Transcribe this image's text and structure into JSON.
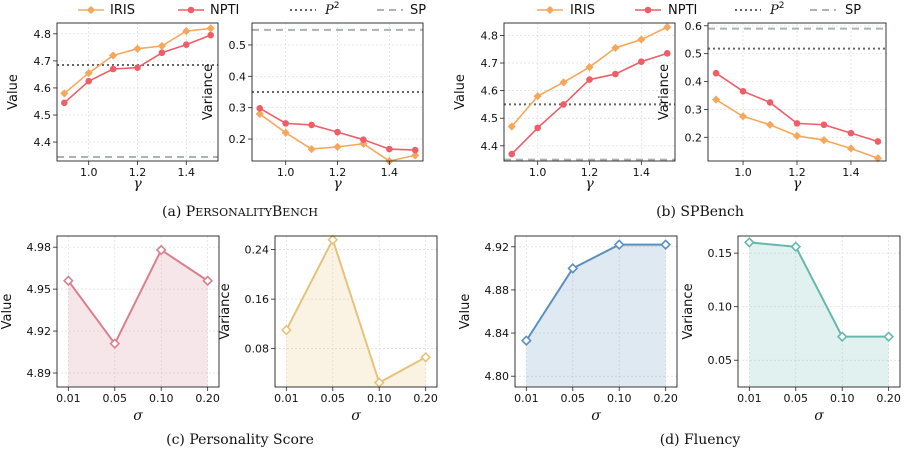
{
  "top_legends": [
    {
      "items": [
        {
          "label": "IRIS",
          "style": "iris"
        },
        {
          "label": "NPTI",
          "style": "npti"
        },
        {
          "label": "P",
          "sup": "2",
          "style": "p2"
        },
        {
          "label": "SP",
          "style": "sp"
        }
      ]
    },
    {
      "items": [
        {
          "label": "IRIS",
          "style": "iris"
        },
        {
          "label": "NPTI",
          "style": "npti"
        },
        {
          "label": "P",
          "sup": "2",
          "style": "p2"
        },
        {
          "label": "SP",
          "style": "sp"
        }
      ]
    }
  ],
  "captions": [
    {
      "prefix": "(a) ",
      "big": [
        "P",
        "B"
      ],
      "text": "(a) PersonalityBench",
      "smallcaps": true
    },
    {
      "text": "(b) SPBench"
    },
    {
      "text": "(c) Personality Score"
    },
    {
      "text": "(d) Fluency"
    }
  ],
  "colors": {
    "iris": "#f5a85a",
    "npti": "#ee5e67",
    "p2": "#666666",
    "sp": "#a9b5b5",
    "pink": "#d9808f",
    "yellow": "#e8c27a",
    "blue": "#5b8fc0",
    "teal": "#66b8ad"
  },
  "chart_data": [
    {
      "id": "a-value",
      "type": "line",
      "xlabel": "γ",
      "ylabel": "Value",
      "xlim": [
        0.87,
        1.53
      ],
      "ylim": [
        4.33,
        4.84
      ],
      "xticks": [
        1.0,
        1.2,
        1.4
      ],
      "xtick_labels": [
        "1.0",
        "1.2",
        "1.4"
      ],
      "yticks": [
        4.4,
        4.5,
        4.6,
        4.7,
        4.8
      ],
      "ytick_labels": [
        "4.4",
        "4.5",
        "4.6",
        "4.7",
        "4.8"
      ],
      "x": [
        0.9,
        1.0,
        1.1,
        1.2,
        1.3,
        1.4,
        1.5
      ],
      "series": [
        {
          "name": "IRIS",
          "style": "iris",
          "values": [
            4.58,
            4.655,
            4.72,
            4.745,
            4.755,
            4.81,
            4.82
          ]
        },
        {
          "name": "NPTI",
          "style": "npti",
          "values": [
            4.545,
            4.625,
            4.67,
            4.675,
            4.73,
            4.76,
            4.795
          ]
        }
      ],
      "hlines": [
        {
          "name": "P2",
          "style": "p2",
          "y": 4.685
        },
        {
          "name": "SP",
          "style": "sp",
          "y": 4.345
        }
      ],
      "grid": true
    },
    {
      "id": "a-variance",
      "type": "line",
      "xlabel": "γ",
      "ylabel": "Variance",
      "xlim": [
        0.87,
        1.53
      ],
      "ylim": [
        0.13,
        0.57
      ],
      "xticks": [
        1.0,
        1.2,
        1.4
      ],
      "xtick_labels": [
        "1.0",
        "1.2",
        "1.4"
      ],
      "yticks": [
        0.2,
        0.3,
        0.4,
        0.5
      ],
      "ytick_labels": [
        "0.2",
        "0.3",
        "0.4",
        "0.5"
      ],
      "x": [
        0.9,
        1.0,
        1.1,
        1.2,
        1.3,
        1.4,
        1.5
      ],
      "series": [
        {
          "name": "IRIS",
          "style": "iris",
          "values": [
            0.28,
            0.22,
            0.168,
            0.175,
            0.185,
            0.13,
            0.148
          ]
        },
        {
          "name": "NPTI",
          "style": "npti",
          "values": [
            0.298,
            0.25,
            0.245,
            0.222,
            0.198,
            0.168,
            0.165
          ]
        }
      ],
      "hlines": [
        {
          "name": "P2",
          "style": "p2",
          "y": 0.35
        },
        {
          "name": "SP",
          "style": "sp",
          "y": 0.548
        }
      ],
      "grid": true
    },
    {
      "id": "b-value",
      "type": "line",
      "xlabel": "γ",
      "ylabel": "Value",
      "xlim": [
        0.87,
        1.53
      ],
      "ylim": [
        4.345,
        4.845
      ],
      "xticks": [
        1.0,
        1.2,
        1.4
      ],
      "xtick_labels": [
        "1.0",
        "1.2",
        "1.4"
      ],
      "yticks": [
        4.4,
        4.5,
        4.6,
        4.7,
        4.8
      ],
      "ytick_labels": [
        "4.4",
        "4.5",
        "4.6",
        "4.7",
        "4.8"
      ],
      "x": [
        0.9,
        1.0,
        1.1,
        1.2,
        1.3,
        1.4,
        1.5
      ],
      "series": [
        {
          "name": "IRIS",
          "style": "iris",
          "values": [
            4.47,
            4.58,
            4.63,
            4.685,
            4.755,
            4.785,
            4.83
          ]
        },
        {
          "name": "NPTI",
          "style": "npti",
          "values": [
            4.37,
            4.465,
            4.55,
            4.64,
            4.66,
            4.705,
            4.735
          ]
        }
      ],
      "hlines": [
        {
          "name": "P2",
          "style": "p2",
          "y": 4.55
        },
        {
          "name": "SP",
          "style": "sp",
          "y": 4.35
        }
      ],
      "grid": true
    },
    {
      "id": "b-variance",
      "type": "line",
      "xlabel": "γ",
      "ylabel": "Variance",
      "xlim": [
        0.87,
        1.53
      ],
      "ylim": [
        0.115,
        0.61
      ],
      "xticks": [
        1.0,
        1.2,
        1.4
      ],
      "xtick_labels": [
        "1.0",
        "1.2",
        "1.4"
      ],
      "yticks": [
        0.2,
        0.3,
        0.4,
        0.5,
        0.6
      ],
      "ytick_labels": [
        "0.2",
        "0.3",
        "0.4",
        "0.5",
        "0.6"
      ],
      "x": [
        0.9,
        1.0,
        1.1,
        1.2,
        1.3,
        1.4,
        1.5
      ],
      "series": [
        {
          "name": "IRIS",
          "style": "iris",
          "values": [
            0.335,
            0.275,
            0.245,
            0.205,
            0.19,
            0.16,
            0.125
          ]
        },
        {
          "name": "NPTI",
          "style": "npti",
          "values": [
            0.43,
            0.365,
            0.325,
            0.25,
            0.245,
            0.215,
            0.185
          ]
        }
      ],
      "hlines": [
        {
          "name": "P2",
          "style": "p2",
          "y": 0.518
        },
        {
          "name": "SP",
          "style": "sp",
          "y": 0.59
        }
      ],
      "grid": true
    },
    {
      "id": "c-value",
      "type": "area",
      "xlabel": "σ",
      "ylabel": "Value",
      "categories": [
        "0.01",
        "0.05",
        "0.10",
        "0.20"
      ],
      "ylim": [
        4.88,
        4.988
      ],
      "yticks": [
        4.89,
        4.92,
        4.95,
        4.98
      ],
      "ytick_labels": [
        "4.89",
        "4.92",
        "4.95",
        "4.98"
      ],
      "series": [
        {
          "style": "pink",
          "values": [
            4.956,
            4.911,
            4.978,
            4.956
          ]
        }
      ],
      "grid": true
    },
    {
      "id": "c-variance",
      "type": "area",
      "xlabel": "σ",
      "ylabel": "Variance",
      "categories": [
        "0.01",
        "0.05",
        "0.10",
        "0.20"
      ],
      "ylim": [
        0.018,
        0.262
      ],
      "yticks": [
        0.08,
        0.16,
        0.24
      ],
      "ytick_labels": [
        "0.08",
        "0.16",
        "0.24"
      ],
      "series": [
        {
          "style": "yellow",
          "values": [
            0.11,
            0.256,
            0.025,
            0.066
          ]
        }
      ],
      "grid": true
    },
    {
      "id": "d-value",
      "type": "area",
      "xlabel": "σ",
      "ylabel": "Value",
      "categories": [
        "0.01",
        "0.05",
        "0.10",
        "0.20"
      ],
      "ylim": [
        4.79,
        4.93
      ],
      "yticks": [
        4.8,
        4.84,
        4.88,
        4.92
      ],
      "ytick_labels": [
        "4.80",
        "4.84",
        "4.88",
        "4.92"
      ],
      "series": [
        {
          "style": "blue",
          "values": [
            4.833,
            4.9,
            4.922,
            4.922
          ]
        }
      ],
      "grid": true
    },
    {
      "id": "d-variance",
      "type": "area",
      "xlabel": "σ",
      "ylabel": "Variance",
      "categories": [
        "0.01",
        "0.05",
        "0.10",
        "0.20"
      ],
      "ylim": [
        0.025,
        0.166
      ],
      "yticks": [
        0.05,
        0.1,
        0.15
      ],
      "ytick_labels": [
        "0.05",
        "0.10",
        "0.15"
      ],
      "series": [
        {
          "style": "teal",
          "values": [
            0.16,
            0.156,
            0.072,
            0.072
          ]
        }
      ],
      "grid": true
    }
  ]
}
